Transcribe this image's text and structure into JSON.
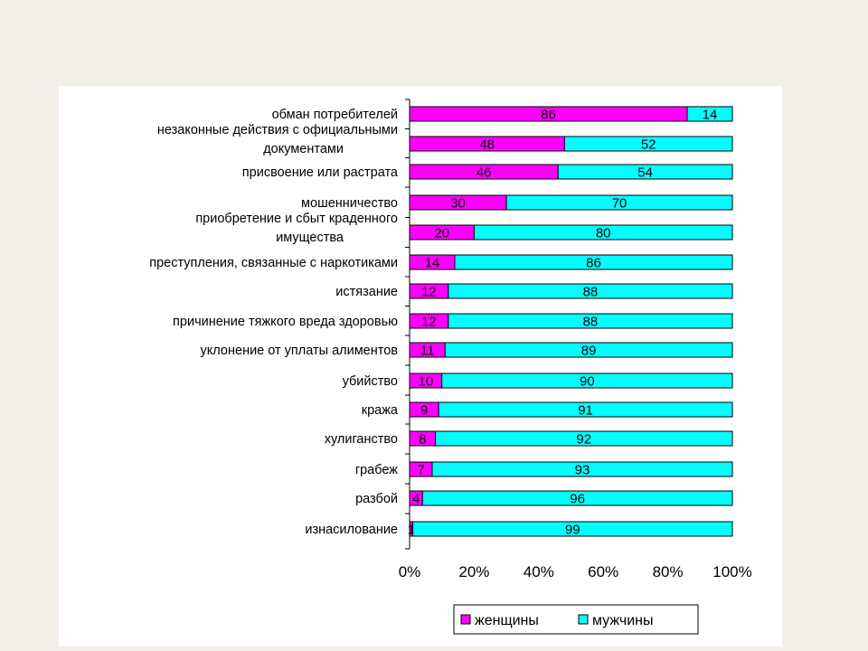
{
  "chart_data": {
    "type": "bar",
    "orientation": "horizontal",
    "stacked": "percent",
    "categories": [
      [
        "обман потребителей"
      ],
      [
        "незаконные действия с официальными",
        "документами"
      ],
      [
        "присвоение или растрата"
      ],
      [
        "мошенничество"
      ],
      [
        "приобретение и сбыт краденного",
        "имущества"
      ],
      [
        "преступления, связанные с наркотиками"
      ],
      [
        "истязание"
      ],
      [
        "причинение тяжкого вреда здоровью"
      ],
      [
        "уклонение от уплаты алиментов"
      ],
      [
        "убийство"
      ],
      [
        "кража"
      ],
      [
        "хулиганство"
      ],
      [
        "грабеж"
      ],
      [
        "разбой"
      ],
      [
        "изнасилование"
      ]
    ],
    "series": [
      {
        "name": "женщины",
        "color": "#ff00ff",
        "values": [
          86,
          48,
          46,
          30,
          20,
          14,
          12,
          12,
          11,
          10,
          9,
          8,
          7,
          4,
          1
        ],
        "labels": [
          "86",
          "48",
          "46",
          "30",
          "20",
          "14",
          "12",
          "12",
          "11",
          "10",
          "9",
          "8",
          "7",
          "4",
          "1"
        ]
      },
      {
        "name": "мужчины",
        "color": "#00ffff",
        "values": [
          14,
          52,
          54,
          70,
          80,
          86,
          88,
          88,
          89,
          90,
          91,
          92,
          93,
          96,
          99
        ],
        "labels": [
          "14",
          "52",
          "54",
          "70",
          "80",
          "86",
          "88",
          "88",
          "89",
          "90",
          "91",
          "92",
          "93",
          "96",
          "99"
        ]
      }
    ],
    "x_ticks": [
      "0%",
      "20%",
      "40%",
      "60%",
      "80%",
      "100%"
    ],
    "xlim": [
      0,
      100
    ],
    "legend_position": "bottom-right",
    "grid": false
  }
}
